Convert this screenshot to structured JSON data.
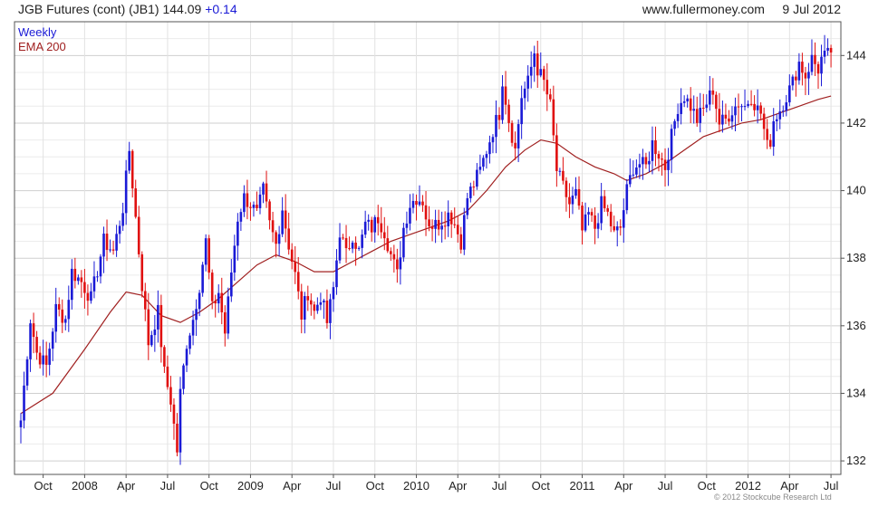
{
  "header": {
    "title": "JGB Futures (cont) (JB1)",
    "last": "144.09",
    "change": "+0.14",
    "site": "www.fullermoney.com",
    "date": "9 Jul 2012"
  },
  "footer": {
    "copyright": "© 2012 Stockcube Research Ltd"
  },
  "colors": {
    "up": "#1a1ad6",
    "down": "#e01010",
    "ema": "#a02020",
    "grid": "#dcdcdc"
  },
  "chart_data": {
    "type": "candlestick",
    "period_label": "Weekly",
    "legend": [
      {
        "name": "Weekly",
        "color": "#1a1ad6"
      },
      {
        "name": "EMA 200",
        "color": "#a02020"
      }
    ],
    "x_ticks": [
      {
        "label": "Oct",
        "idx": 7
      },
      {
        "label": "2008",
        "idx": 20
      },
      {
        "label": "Apr",
        "idx": 33
      },
      {
        "label": "Jul",
        "idx": 46
      },
      {
        "label": "Oct",
        "idx": 59
      },
      {
        "label": "2009",
        "idx": 72
      },
      {
        "label": "Apr",
        "idx": 85
      },
      {
        "label": "Jul",
        "idx": 98
      },
      {
        "label": "Oct",
        "idx": 111
      },
      {
        "label": "2010",
        "idx": 124
      },
      {
        "label": "Apr",
        "idx": 137
      },
      {
        "label": "Jul",
        "idx": 150
      },
      {
        "label": "Oct",
        "idx": 163
      },
      {
        "label": "2011",
        "idx": 176
      },
      {
        "label": "Apr",
        "idx": 189
      },
      {
        "label": "Jul",
        "idx": 202
      },
      {
        "label": "Oct",
        "idx": 215
      },
      {
        "label": "2012",
        "idx": 228
      },
      {
        "label": "Apr",
        "idx": 241
      },
      {
        "label": "Jul",
        "idx": 254
      }
    ],
    "y_ticks": [
      132,
      134,
      136,
      138,
      140,
      142,
      144
    ],
    "ylim": [
      131.6,
      145.0
    ],
    "close_anchors": [
      [
        0,
        133.2
      ],
      [
        3,
        136.2
      ],
      [
        5,
        135.2
      ],
      [
        8,
        134.8
      ],
      [
        11,
        136.5
      ],
      [
        14,
        136.2
      ],
      [
        16,
        137.6
      ],
      [
        19,
        137.3
      ],
      [
        22,
        136.8
      ],
      [
        26,
        138.5
      ],
      [
        29,
        138.2
      ],
      [
        32,
        139.5
      ],
      [
        34,
        141.2
      ],
      [
        36,
        139.2
      ],
      [
        38,
        137.2
      ],
      [
        40,
        135.5
      ],
      [
        43,
        136.4
      ],
      [
        45,
        134.6
      ],
      [
        47,
        133.8
      ],
      [
        49,
        132.3
      ],
      [
        50,
        134.0
      ],
      [
        52,
        135.5
      ],
      [
        54,
        136.2
      ],
      [
        56,
        137.2
      ],
      [
        58,
        138.5
      ],
      [
        60,
        136.5
      ],
      [
        62,
        137.0
      ],
      [
        64,
        135.8
      ],
      [
        66,
        137.6
      ],
      [
        68,
        139.2
      ],
      [
        70,
        139.8
      ],
      [
        72,
        139.6
      ],
      [
        74,
        139.3
      ],
      [
        76,
        140.0
      ],
      [
        78,
        139.0
      ],
      [
        80,
        138.4
      ],
      [
        82,
        139.5
      ],
      [
        84,
        138.4
      ],
      [
        86,
        137.5
      ],
      [
        88,
        136.3
      ],
      [
        90,
        137.0
      ],
      [
        92,
        136.4
      ],
      [
        94,
        136.9
      ],
      [
        96,
        136.1
      ],
      [
        98,
        137.1
      ],
      [
        100,
        138.8
      ],
      [
        102,
        138.1
      ],
      [
        104,
        138.7
      ],
      [
        106,
        138.2
      ],
      [
        108,
        139.0
      ],
      [
        110,
        138.9
      ],
      [
        112,
        139.2
      ],
      [
        114,
        138.8
      ],
      [
        116,
        138.1
      ],
      [
        118,
        137.5
      ],
      [
        120,
        138.9
      ],
      [
        122,
        139.6
      ],
      [
        124,
        139.8
      ],
      [
        126,
        139.7
      ],
      [
        128,
        138.8
      ],
      [
        130,
        139.3
      ],
      [
        132,
        138.9
      ],
      [
        134,
        139.4
      ],
      [
        136,
        139.0
      ],
      [
        138,
        138.5
      ],
      [
        140,
        139.8
      ],
      [
        142,
        140.2
      ],
      [
        144,
        140.6
      ],
      [
        146,
        141.2
      ],
      [
        148,
        141.8
      ],
      [
        150,
        142.3
      ],
      [
        151,
        143.3
      ],
      [
        153,
        142.1
      ],
      [
        155,
        141.2
      ],
      [
        157,
        142.8
      ],
      [
        159,
        143.2
      ],
      [
        161,
        144.1
      ],
      [
        162,
        143.6
      ],
      [
        164,
        143.2
      ],
      [
        166,
        142.5
      ],
      [
        168,
        140.6
      ],
      [
        170,
        140.1
      ],
      [
        172,
        139.6
      ],
      [
        174,
        139.9
      ],
      [
        176,
        138.8
      ],
      [
        178,
        139.3
      ],
      [
        180,
        138.9
      ],
      [
        182,
        139.6
      ],
      [
        184,
        139.3
      ],
      [
        186,
        138.7
      ],
      [
        188,
        138.9
      ],
      [
        190,
        140.0
      ],
      [
        192,
        140.7
      ],
      [
        194,
        140.8
      ],
      [
        196,
        140.7
      ],
      [
        198,
        141.4
      ],
      [
        200,
        141.1
      ],
      [
        202,
        140.7
      ],
      [
        204,
        141.6
      ],
      [
        206,
        142.5
      ],
      [
        208,
        142.8
      ],
      [
        210,
        142.5
      ],
      [
        212,
        142.1
      ],
      [
        214,
        142.4
      ],
      [
        216,
        142.8
      ],
      [
        217,
        143.0
      ],
      [
        219,
        142.0
      ],
      [
        221,
        142.1
      ],
      [
        223,
        142.4
      ],
      [
        225,
        142.6
      ],
      [
        227,
        142.5
      ],
      [
        229,
        142.8
      ],
      [
        231,
        142.4
      ],
      [
        232,
        142.3
      ],
      [
        234,
        141.3
      ],
      [
        235,
        141.5
      ],
      [
        236,
        142.1
      ],
      [
        238,
        142.4
      ],
      [
        240,
        142.8
      ],
      [
        242,
        143.2
      ],
      [
        244,
        143.8
      ],
      [
        246,
        143.4
      ],
      [
        248,
        143.9
      ],
      [
        250,
        143.6
      ],
      [
        251,
        143.9
      ],
      [
        253,
        144.0
      ],
      [
        254,
        144.09
      ]
    ],
    "ema_200": [
      [
        0,
        133.4
      ],
      [
        10,
        134.0
      ],
      [
        20,
        135.3
      ],
      [
        28,
        136.4
      ],
      [
        33,
        137.0
      ],
      [
        38,
        136.9
      ],
      [
        44,
        136.3
      ],
      [
        50,
        136.1
      ],
      [
        56,
        136.4
      ],
      [
        62,
        136.8
      ],
      [
        68,
        137.3
      ],
      [
        74,
        137.8
      ],
      [
        80,
        138.1
      ],
      [
        86,
        137.9
      ],
      [
        92,
        137.6
      ],
      [
        98,
        137.6
      ],
      [
        104,
        137.9
      ],
      [
        110,
        138.2
      ],
      [
        116,
        138.5
      ],
      [
        122,
        138.7
      ],
      [
        128,
        138.9
      ],
      [
        134,
        139.1
      ],
      [
        140,
        139.4
      ],
      [
        146,
        140.0
      ],
      [
        152,
        140.7
      ],
      [
        158,
        141.2
      ],
      [
        163,
        141.5
      ],
      [
        168,
        141.4
      ],
      [
        174,
        141.0
      ],
      [
        180,
        140.7
      ],
      [
        186,
        140.5
      ],
      [
        190,
        140.3
      ],
      [
        196,
        140.5
      ],
      [
        202,
        140.8
      ],
      [
        208,
        141.2
      ],
      [
        214,
        141.6
      ],
      [
        220,
        141.8
      ],
      [
        226,
        142.0
      ],
      [
        232,
        142.1
      ],
      [
        238,
        142.3
      ],
      [
        244,
        142.5
      ],
      [
        250,
        142.7
      ],
      [
        254,
        142.8
      ]
    ]
  }
}
